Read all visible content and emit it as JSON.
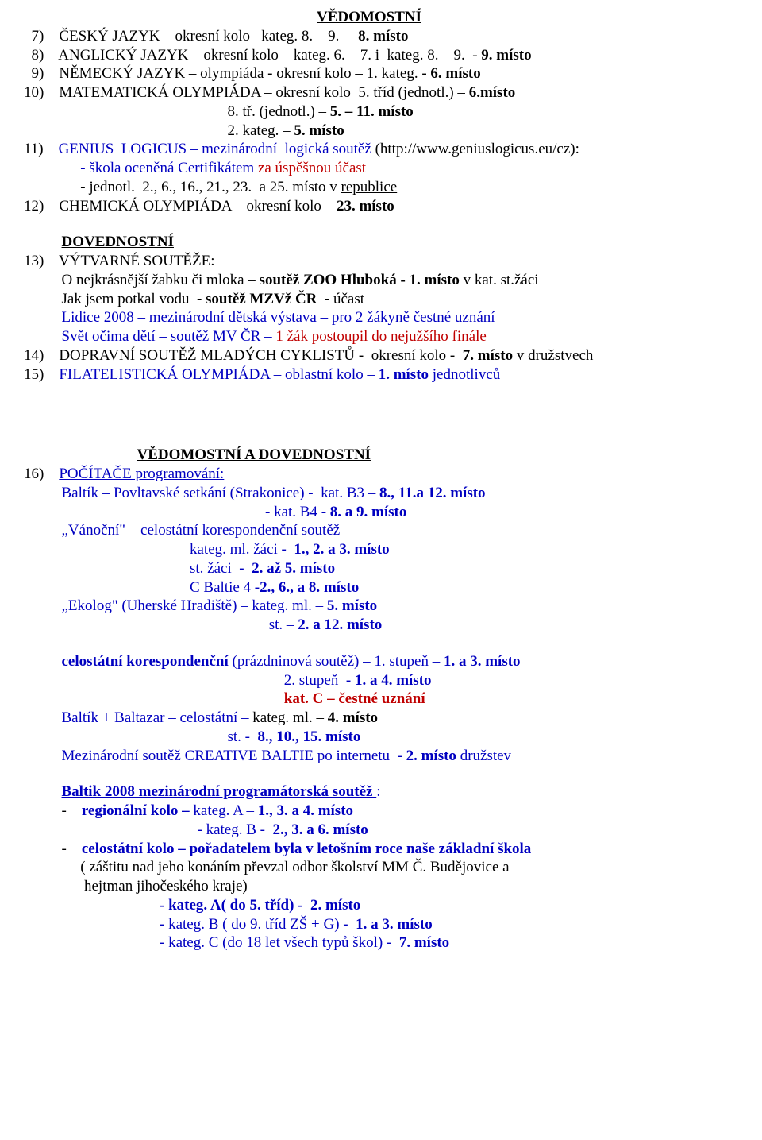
{
  "colors": {
    "text": "#000000",
    "blue": "#0000c0",
    "red": "#c00000",
    "background": "#ffffff"
  },
  "typography": {
    "fontFamily": "Times New Roman",
    "fontSizePt": 14,
    "lineHeight": 1.25
  },
  "page": {
    "widthPx": 960,
    "heightPx": 1435
  },
  "sec1": {
    "heading": "VĚDOMOSTNÍ",
    "i7_num": "7)",
    "i7_text": "ČESKÝ JAZYK – okresní kolo –kateg. 8. – 9. –  ",
    "i7_bold": "8. místo",
    "i8_num": "8)",
    "i8_text": "ANGLICKÝ JAZYK – okresní kolo – kateg. 6. – 7. i  kateg. 8. – 9.  - ",
    "i8_bold": "9. místo",
    "i9_num": "9)",
    "i9_text": "NĚMECKÝ JAZYK – olympiáda - okresní kolo – 1. kateg. - ",
    "i9_bold": "6. místo",
    "i10_num": "10)",
    "i10_text": "MATEMATICKÁ OLYMPIÁDA – okresní kolo  5. tříd (jednotl.) – ",
    "i10_bold": "6.místo",
    "i10_line2_text": "8. tř. (jednotl.) – ",
    "i10_line2_bold": "5. – 11. místo",
    "i10_line3_text": "2. kateg. – ",
    "i10_line3_bold": "5. místo",
    "i11_num": "11)",
    "i11_blue": "GENIUS  LOGICUS – mezinárodní  logická soutěž ",
    "i11_black": "(http://www.geniuslogicus.eu/cz):",
    "i11_b_blue1": "- škola oceněná Certifikátem ",
    "i11_b_red": "za úspěšnou účast",
    "i11_c": "- jednotl.  2., 6., 16., 21., 23.  a 25. místo v ",
    "i11_c_u": "republice",
    "i12_num": "12)",
    "i12_text": "CHEMICKÁ OLYMPIÁDA – okresní kolo – ",
    "i12_bold": "23. místo"
  },
  "sec2": {
    "heading": "DOVEDNOSTNÍ",
    "i13_num": "13)",
    "i13_label": "VÝTVARNÉ SOUTĚŽE:",
    "i13_a_pre": "O nejkrásnější žabku či mloka – ",
    "i13_a_bold": "soutěž ZOO Hluboká - 1. místo ",
    "i13_a_post": "v kat. st.žáci",
    "i13_b_pre": "Jak jsem potkal vodu  - ",
    "i13_b_bold": "soutěž MZVž ČR",
    "i13_b_post": "  - účast",
    "i13_c": "Lidice 2008 – mezinárodní dětská výstava – pro 2 žákyně čestné uznání",
    "i13_d_blue": "Svět očima dětí – soutěž MV ČR – ",
    "i13_d_red": "1 žák postoupil do nejužšího finále",
    "i14_num": "14)",
    "i14_text": "DOPRAVNÍ SOUTĚŽ MLADÝCH CYKLISTŮ -  okresní kolo -  ",
    "i14_bold": "7. místo",
    "i14_post": " v družstvech",
    "i15_num": "15)",
    "i15_blue": "FILATELISTICKÁ OLYMPIÁDA – oblastní kolo – ",
    "i15_bold": "1. místo ",
    "i15_post": "jednotlivců"
  },
  "sec3": {
    "heading": "VĚDOMOSTNÍ A DOVEDNOSTNÍ",
    "i16_num": "16)",
    "i16_label": "POČÍTAČE programování:",
    "baltik1_pre": "Baltík – Povltavské setkání (Strakonice) -  kat. B3 – ",
    "baltik1_bold": "8., 11.a 12. místo",
    "baltik2_pre": "- kat. B4 - ",
    "baltik2_bold": "8. a 9. místo",
    "vanocni": "„Vánoční\" – celostátní korespondenční soutěž",
    "van_a_pre": "kateg. ml. žáci -  ",
    "van_a_bold": "1., 2. a 3. místo",
    "van_b_pre": "st. žáci  -  ",
    "van_b_bold": "2. až 5. místo",
    "van_c_pre": "C Baltie 4 -",
    "van_c_bold": "2., 6., a 8. místo",
    "ekolog_pre": "„Ekolog\" (Uherské Hradiště) – kateg. ml. – ",
    "ekolog_bold": "5. místo",
    "ekolog2_pre": "st. – ",
    "ekolog2_bold": "2. a 12. místo",
    "koresp1_pre": "celostátní korespondenční ",
    "koresp1_mid": "(prázdninová soutěž) – 1. stupeň – ",
    "koresp1_bold": "1. a 3. místo",
    "koresp2_pre": "2. stupeň  - ",
    "koresp2_bold": "1. a 4. místo",
    "koresp3_pre": "kat. C – ",
    "koresp3_bold": "čestné uznání",
    "bb_pre": "Baltík + Baltazar – celostátní – ",
    "bb_mid": "kateg. ml. – ",
    "bb_bold": "4. místo",
    "bb2_pre": "st. -  ",
    "bb2_bold": "8., 10., 15. místo",
    "cb_pre": "Mezinárodní soutěž ",
    "cb_mid1": "CREATIVE BALTIE po internetu  - ",
    "cb_bold": "2. místo ",
    "cb_post": "družstev",
    "b08": "Baltik 2008 mezinárodní programátorská soutěž ",
    "b08_colon": ":",
    "b08_a_pre": "regionální kolo – ",
    "b08_a_mid": "kateg. A – ",
    "b08_a_bold": "1., 3. a 4. místo",
    "b08_b_pre": "- kateg. B -  ",
    "b08_b_bold": "2., 3. a 6. místo",
    "b08_c": "celostátní kolo – pořadatelem byla v letošním roce naše základní škola",
    "b08_c2a": "( záštitu nad jeho konáním převzal odbor školství MM Č. Budějovice a",
    "b08_c2b": " hejtman jihočeského kraje)",
    "b08_d1_pre": "- kateg. A( do 5. tříd) -  ",
    "b08_d1_bold": "2. místo",
    "b08_d2_pre": "- kateg. B ( do 9. tříd ZŠ + G) -  ",
    "b08_d2_bold": "1. a 3. místo",
    "b08_d3_pre": "- kateg. C (do 18 let všech typů škol) -  ",
    "b08_d3_bold": "7. místo"
  }
}
